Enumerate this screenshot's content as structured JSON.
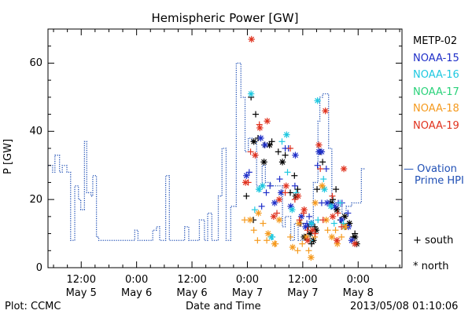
{
  "chart_data": {
    "type": "scatter",
    "title": "Hemispheric Power [GW]",
    "ylabel": "P [GW]",
    "xlabel": "Date and Time",
    "ylim": [
      0,
      70
    ],
    "yticks": [
      0,
      20,
      40,
      60
    ],
    "x_unit": "hours since 2013-05-04 00:00 UT",
    "xlim": [
      4.8,
      81.5
    ],
    "xticks": [
      {
        "x": 12,
        "time": "12:00",
        "date": "May 5"
      },
      {
        "x": 24,
        "time": "0:00",
        "date": "May 6"
      },
      {
        "x": 36,
        "time": "12:00",
        "date": "May 6"
      },
      {
        "x": 48,
        "time": "0:00",
        "date": "May 7"
      },
      {
        "x": 60,
        "time": "12:00",
        "date": "May 7"
      },
      {
        "x": 72,
        "time": "0:00",
        "date": "May 8"
      }
    ],
    "grid": false,
    "ovation_series": {
      "name": "Ovation Prime HPI",
      "legend_lines": [
        "— Ovation",
        "Prime HPI"
      ],
      "color": "#1f4fb5",
      "style": "dotted-step",
      "x": [
        4.8,
        5.8,
        6.3,
        7.3,
        7.9,
        8.9,
        9.7,
        10.2,
        10.6,
        11.4,
        11.9,
        12.7,
        13.2,
        14.1,
        14.5,
        15.3,
        15.8,
        16.5,
        17.2,
        17.8,
        18.3,
        22.1,
        23.6,
        24.3,
        26.9,
        27.5,
        28.3,
        29.0,
        29.6,
        30.3,
        31.1,
        32.0,
        33.5,
        34.4,
        35.3,
        36.2,
        37.6,
        38.7,
        39.4,
        40.3,
        41.7,
        42.5,
        43.4,
        44.4,
        45.6,
        46.6,
        47.5,
        48.2,
        49.0,
        50.0,
        51.2,
        51.9,
        53.1,
        54.2,
        55.6,
        56.2,
        57.4,
        58.2,
        59.0,
        60.0,
        61.1,
        62.3,
        63.3,
        63.7,
        64.3,
        65.6,
        66.3,
        66.9,
        67.5,
        68.5,
        69.4,
        70.6,
        71.6,
        72.7
      ],
      "y": [
        30,
        28,
        33,
        28,
        30,
        28,
        8,
        8,
        24,
        20,
        17,
        37,
        22,
        21,
        27,
        9,
        8,
        8,
        8,
        8,
        8,
        8,
        11,
        8,
        8,
        11,
        12,
        8,
        8,
        27,
        8,
        8,
        8,
        12,
        8,
        8,
        14,
        8,
        16,
        8,
        21,
        35,
        8,
        18,
        60,
        50,
        34,
        38,
        37,
        24,
        30,
        25,
        24,
        24,
        12,
        15,
        8,
        13,
        8,
        8,
        10,
        25,
        43,
        50,
        51,
        35,
        20,
        17,
        18,
        16,
        18,
        19,
        19,
        29
      ]
    },
    "satellite_series": [
      {
        "name": "METP-02",
        "color": "#000000",
        "south_plus": [
          [
            47.8,
            21
          ],
          [
            48.8,
            50
          ],
          [
            49.3,
            14
          ],
          [
            49.8,
            45
          ],
          [
            50.3,
            38
          ],
          [
            51.7,
            36
          ],
          [
            53.3,
            37
          ],
          [
            54.7,
            34
          ],
          [
            56.2,
            33
          ],
          [
            57.3,
            22
          ],
          [
            58.2,
            27
          ],
          [
            58.9,
            23
          ],
          [
            59.6,
            13
          ],
          [
            60.6,
            9
          ],
          [
            61.2,
            12
          ],
          [
            61.9,
            7
          ],
          [
            62.6,
            12
          ],
          [
            63.1,
            23
          ],
          [
            63.8,
            34
          ],
          [
            64.3,
            31
          ],
          [
            66.5,
            20
          ],
          [
            67.2,
            23
          ],
          [
            68.2,
            14
          ],
          [
            69.3,
            12
          ],
          [
            70.9,
            9
          ],
          [
            71.3,
            10
          ]
        ],
        "north_star": [
          [
            49.4,
            37
          ],
          [
            51.6,
            31
          ],
          [
            52.8,
            36
          ],
          [
            55.6,
            31
          ],
          [
            58.5,
            21
          ],
          [
            60.3,
            9
          ],
          [
            61.6,
            10
          ],
          [
            62.3,
            8
          ],
          [
            62.9,
            11
          ],
          [
            66.1,
            19
          ],
          [
            67.4,
            17
          ],
          [
            69.1,
            15
          ],
          [
            70.1,
            13
          ],
          [
            71.3,
            9
          ],
          [
            71.7,
            7
          ]
        ]
      },
      {
        "name": "NOAA-15",
        "color": "#1f2fc8",
        "south_plus": [
          [
            48.4,
            28
          ],
          [
            51.1,
            18
          ],
          [
            52.1,
            22
          ],
          [
            52.9,
            24
          ],
          [
            55.0,
            26
          ],
          [
            56.2,
            35
          ],
          [
            56.9,
            35
          ],
          [
            58.3,
            24
          ],
          [
            59.4,
            13
          ],
          [
            60.9,
            13
          ],
          [
            61.4,
            15
          ],
          [
            63.2,
            30
          ],
          [
            64.1,
            19
          ],
          [
            65.1,
            29
          ],
          [
            66.3,
            18
          ],
          [
            67.7,
            19
          ],
          [
            68.5,
            19
          ],
          [
            69.8,
            16
          ]
        ],
        "north_star": [
          [
            47.8,
            27
          ],
          [
            50.9,
            38
          ],
          [
            51.8,
            36
          ],
          [
            53.9,
            19
          ],
          [
            55.3,
            22
          ],
          [
            57.4,
            18
          ],
          [
            58.4,
            33
          ],
          [
            59.7,
            15
          ],
          [
            60.6,
            12
          ],
          [
            61.8,
            13
          ],
          [
            63.5,
            34
          ],
          [
            64.1,
            34
          ],
          [
            65.3,
            19
          ],
          [
            66.9,
            18
          ],
          [
            68.4,
            14
          ],
          [
            69.9,
            12
          ],
          [
            70.6,
            8
          ]
        ]
      },
      {
        "name": "NOAA-16",
        "color": "#1ec8e0",
        "south_plus": [
          [
            49.6,
            17
          ],
          [
            50.6,
            23
          ],
          [
            53.4,
            9
          ],
          [
            55.5,
            37
          ],
          [
            56.7,
            28
          ],
          [
            58.6,
            22
          ],
          [
            61.6,
            8
          ],
          [
            63.3,
            14
          ],
          [
            64.5,
            26
          ],
          [
            66.8,
            13
          ],
          [
            68.1,
            19
          ],
          [
            68.8,
            13
          ]
        ],
        "north_star": [
          [
            48.8,
            51
          ],
          [
            50.5,
            23
          ],
          [
            51.3,
            24
          ],
          [
            53.2,
            9
          ],
          [
            56.5,
            39
          ],
          [
            57.7,
            17
          ],
          [
            61.9,
            13
          ],
          [
            63.2,
            49
          ],
          [
            64.7,
            23
          ],
          [
            66.1,
            18
          ],
          [
            69.0,
            12
          ]
        ]
      },
      {
        "name": "NOAA-17",
        "color": "#2ad27a",
        "south_plus": [],
        "north_star": []
      },
      {
        "name": "NOAA-18",
        "color": "#f59a1e",
        "south_plus": [
          [
            47.4,
            14
          ],
          [
            49.4,
            11
          ],
          [
            50.2,
            8
          ],
          [
            51.4,
            13
          ],
          [
            52.2,
            8
          ],
          [
            54.1,
            7
          ],
          [
            57.3,
            9
          ],
          [
            58.9,
            5
          ],
          [
            59.9,
            7
          ],
          [
            61.3,
            5
          ],
          [
            61.8,
            3
          ],
          [
            62.6,
            9
          ],
          [
            64.2,
            24
          ],
          [
            65.4,
            11
          ],
          [
            67.1,
            11
          ],
          [
            68.4,
            9
          ],
          [
            69.4,
            12
          ]
        ],
        "north_star": [
          [
            48.6,
            14
          ],
          [
            50.4,
            16
          ],
          [
            52.5,
            10
          ],
          [
            53.9,
            7
          ],
          [
            54.9,
            14
          ],
          [
            57.8,
            6
          ],
          [
            59.2,
            13
          ],
          [
            60.8,
            9
          ],
          [
            61.8,
            3
          ],
          [
            62.7,
            19
          ],
          [
            64.2,
            24
          ],
          [
            65.1,
            14
          ],
          [
            66.3,
            9
          ],
          [
            67.5,
            7
          ],
          [
            69.1,
            12
          ]
        ]
      },
      {
        "name": "NOAA-19",
        "color": "#e0321e",
        "south_plus": [
          [
            48.2,
            25
          ],
          [
            48.7,
            34
          ],
          [
            50.6,
            42
          ],
          [
            54.4,
            16
          ],
          [
            56.2,
            22
          ],
          [
            57.3,
            35
          ],
          [
            58.3,
            20
          ],
          [
            59.3,
            14
          ],
          [
            60.2,
            16
          ],
          [
            61.0,
            11
          ],
          [
            62.7,
            10
          ],
          [
            63.8,
            29
          ],
          [
            64.4,
            14
          ],
          [
            66.4,
            21
          ],
          [
            67.6,
            16
          ],
          [
            68.4,
            12
          ]
        ],
        "north_star": [
          [
            47.6,
            25
          ],
          [
            48.9,
            67
          ],
          [
            49.7,
            33
          ],
          [
            50.7,
            41
          ],
          [
            52.3,
            43
          ],
          [
            53.7,
            15
          ],
          [
            54.9,
            20
          ],
          [
            56.4,
            24
          ],
          [
            59.0,
            21
          ],
          [
            60.3,
            17
          ],
          [
            61.1,
            8
          ],
          [
            62.1,
            11
          ],
          [
            63.5,
            36
          ],
          [
            64.9,
            46
          ],
          [
            66.5,
            15
          ],
          [
            67.4,
            8
          ],
          [
            68.9,
            29
          ],
          [
            71.3,
            7
          ]
        ]
      }
    ],
    "symbol_key": [
      {
        "symbol": "+",
        "label": "south"
      },
      {
        "symbol": "*",
        "label": "north"
      }
    ],
    "footer": {
      "left": "Plot: CCMC",
      "right": "2013/05/08 01:10:06"
    }
  }
}
